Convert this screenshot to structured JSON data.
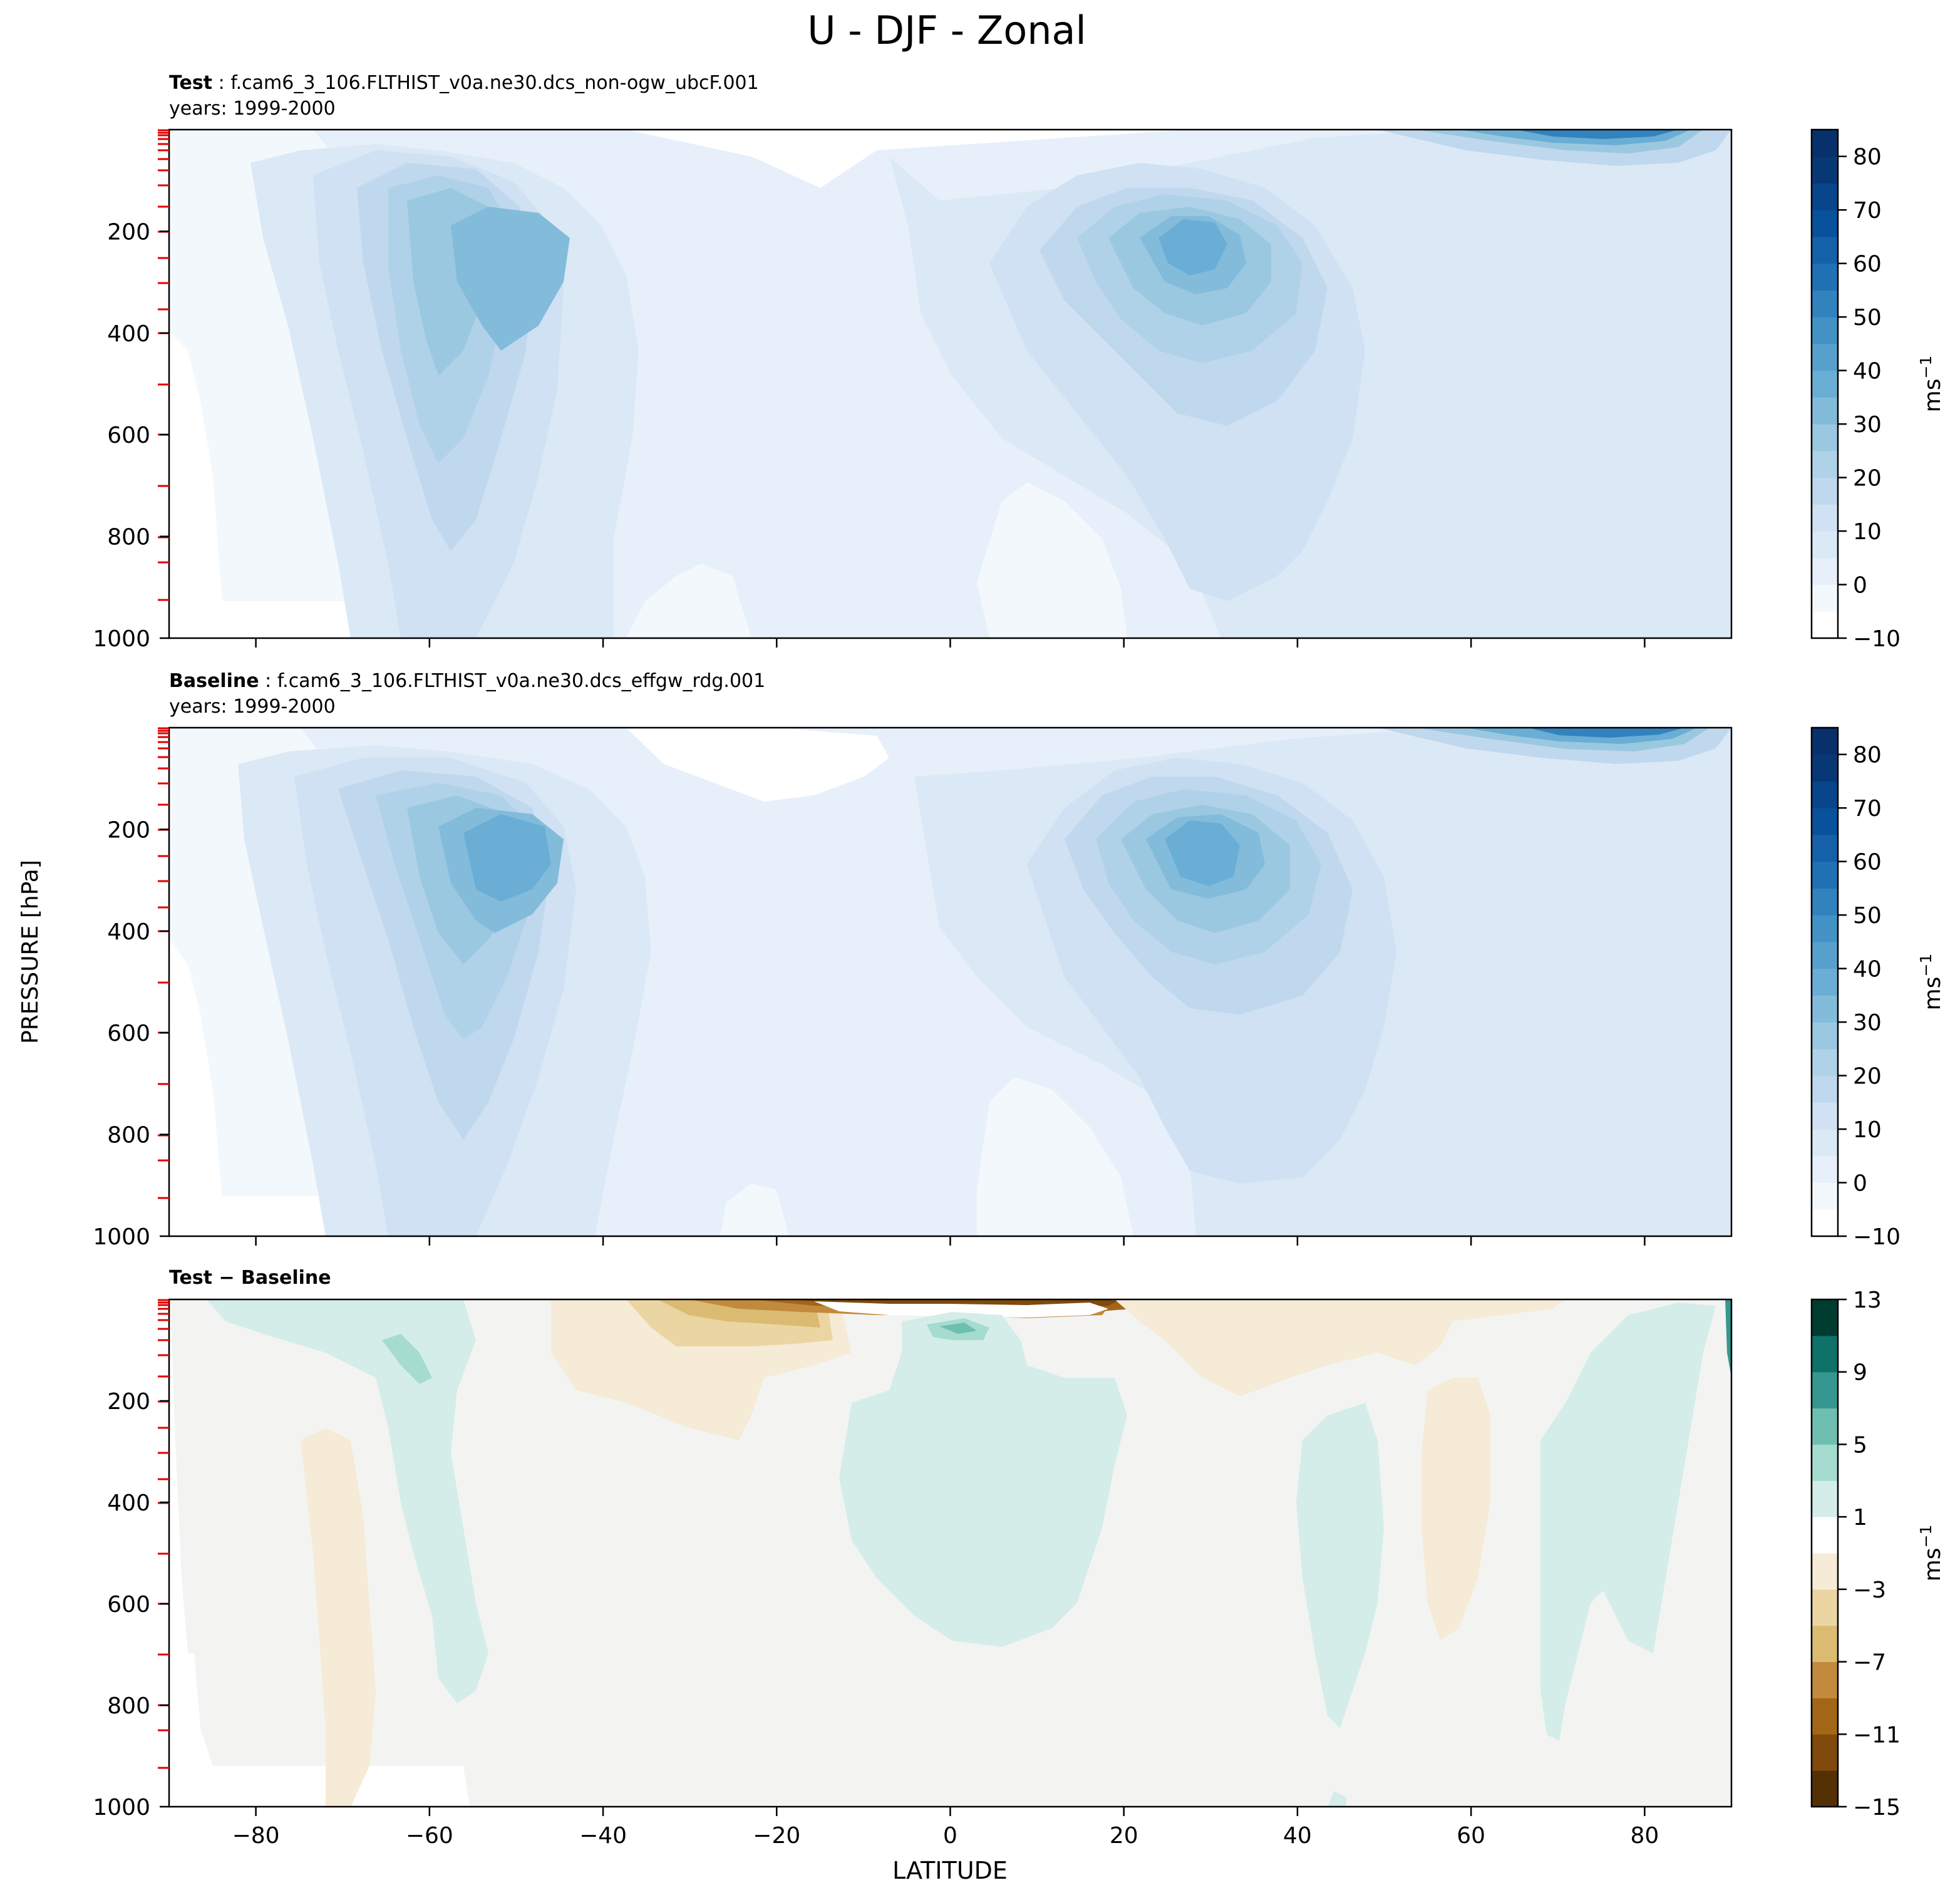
{
  "figure": {
    "title": "U - DJF - Zonal",
    "ylabel": "PRESSURE [hPa]",
    "xlabel": "LATITUDE"
  },
  "chart_data": [
    {
      "type": "contour",
      "panel": "test",
      "title_bold": "Test",
      "title_rest": " : f.cam6_3_106.FLTHIST_v0a.ne30.dcs_non-ogw_ubcF.001",
      "subtitle": "years: 1999-2000",
      "xlim": [
        -90,
        90
      ],
      "ylim": [
        1000,
        0
      ],
      "yticks": [
        "200",
        "400",
        "600",
        "800",
        "1000"
      ],
      "colorbar": {
        "label": "ms",
        "label_sup": "−1",
        "levels": [
          -10,
          -5,
          0,
          5,
          10,
          15,
          20,
          25,
          30,
          35,
          40,
          45,
          50,
          55,
          60,
          65,
          70,
          75,
          80,
          85
        ],
        "ticks": [
          "80",
          "70",
          "60",
          "50",
          "40",
          "30",
          "20",
          "10",
          "0",
          "−10"
        ],
        "tick_values": [
          80,
          70,
          60,
          50,
          40,
          30,
          20,
          10,
          0,
          -10
        ],
        "colors": [
          "#ffffff",
          "#f3f8fd",
          "#e7f0fa",
          "#dbe9f6",
          "#cfe1f2",
          "#c0d8ed",
          "#b0d2e8",
          "#9ac8e0",
          "#83bbdb",
          "#6aaed6",
          "#57a0ce",
          "#4292c6",
          "#3282be",
          "#2171b5",
          "#1561a9",
          "#08519c",
          "#08458a",
          "#083776",
          "#08306b"
        ]
      },
      "features": [
        {
          "name": "southern jet core",
          "lat": -52,
          "pressure": 250,
          "value": 40
        },
        {
          "name": "northern jet core",
          "lat": 31,
          "pressure": 210,
          "value": 45
        },
        {
          "name": "polar night jet (top)",
          "lat": 68,
          "pressure": 5,
          "value": 80
        }
      ]
    },
    {
      "type": "contour",
      "panel": "baseline",
      "title_bold": "Baseline",
      "title_rest": " : f.cam6_3_106.FLTHIST_v0a.ne30.dcs_effgw_rdg.001",
      "subtitle": "years: 1999-2000",
      "xlim": [
        -90,
        90
      ],
      "ylim": [
        1000,
        0
      ],
      "yticks": [
        "200",
        "400",
        "600",
        "800",
        "1000"
      ],
      "colorbar": {
        "label": "ms",
        "label_sup": "−1",
        "ticks": [
          "80",
          "70",
          "60",
          "50",
          "40",
          "30",
          "20",
          "10",
          "0",
          "−10"
        ],
        "tick_values": [
          80,
          70,
          60,
          50,
          40,
          30,
          20,
          10,
          0,
          -10
        ]
      },
      "features": [
        {
          "name": "southern jet core",
          "lat": -51,
          "pressure": 250,
          "value": 40
        },
        {
          "name": "northern jet core",
          "lat": 31,
          "pressure": 210,
          "value": 45
        },
        {
          "name": "polar night jet (top)",
          "lat": 70,
          "pressure": 5,
          "value": 80
        }
      ]
    },
    {
      "type": "contour",
      "panel": "difference",
      "title_bold": "Test − Baseline",
      "xlim": [
        -90,
        90
      ],
      "ylim": [
        1000,
        0
      ],
      "xticks": [
        "−80",
        "−60",
        "−40",
        "−20",
        "0",
        "20",
        "40",
        "60",
        "80"
      ],
      "xtick_values": [
        -80,
        -60,
        -40,
        -20,
        0,
        20,
        40,
        60,
        80
      ],
      "yticks": [
        "200",
        "400",
        "600",
        "800",
        "1000"
      ],
      "colorbar": {
        "label": "ms",
        "label_sup": "−1",
        "levels": [
          -15,
          -13,
          -11,
          -9,
          -7,
          -5,
          -3,
          -1,
          1,
          3,
          5,
          7,
          9,
          11,
          13
        ],
        "ticks": [
          "13",
          "9",
          "5",
          "1",
          "−3",
          "−7",
          "−11",
          "−15"
        ],
        "tick_values": [
          13,
          9,
          5,
          1,
          -3,
          -7,
          -11,
          -15
        ],
        "colors": [
          "#543005",
          "#7f4a0b",
          "#a36617",
          "#c28a3c",
          "#dbbb72",
          "#ebd5a2",
          "#f5ebd6",
          "#ffffff",
          "#d4ede9",
          "#a6dbd0",
          "#6fbfb1",
          "#35978f",
          "#0e7269",
          "#003c30"
        ]
      },
      "features": [
        {
          "name": "upper tropical easterly difference",
          "lat": 2,
          "pressure": 15,
          "value": -15
        },
        {
          "name": "tropical positive region",
          "lat": 2,
          "pressure": 350,
          "value": 2
        },
        {
          "name": "southern high-latitude positive",
          "lat": -62,
          "pressure": 100,
          "value": 6
        }
      ]
    }
  ]
}
